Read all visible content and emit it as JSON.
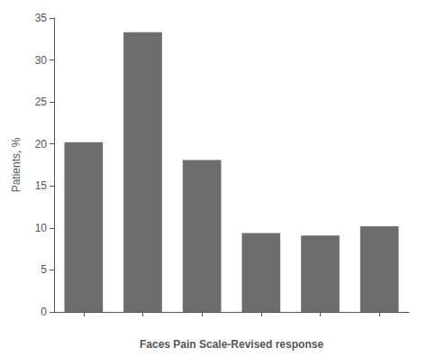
{
  "chart_data": {
    "type": "bar",
    "categories": [
      null,
      null,
      null,
      null,
      null,
      null
    ],
    "values": [
      20.2,
      33.3,
      18.1,
      9.4,
      9.1,
      10.2
    ],
    "color": "#6d6d6d",
    "ylabel": "Patients, %",
    "xlabel": "Faces Pain Scale-Revised response",
    "ylim": [
      0,
      35
    ],
    "yticks": [
      0,
      5,
      10,
      15,
      20,
      25,
      30,
      35
    ],
    "grid": false
  }
}
